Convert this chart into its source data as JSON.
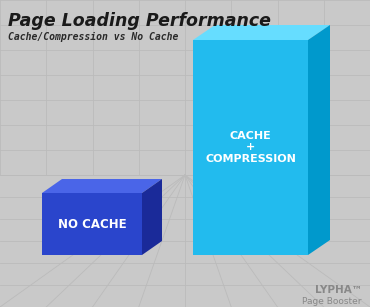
{
  "title": "Page Loading Performance",
  "subtitle": "Cache/Compression vs No Cache",
  "bg_color": "#c9c9c9",
  "grid_color": "#bbbbbb",
  "grid_linewidth": 0.6,
  "title_color": "#1a1a1a",
  "subtitle_color": "#2a2a2a",
  "watermark_line1": "LYPHA™",
  "watermark_line2": "Page Booster",
  "watermark_color": "#888888",
  "bar1_label": "NO CACHE",
  "bar2_label": "CACHE\n+\nCOMPRESSION",
  "bar1_front": "#2a45cc",
  "bar1_top": "#4a65e8",
  "bar1_side": "#1a2a99",
  "bar2_front": "#22bbee",
  "bar2_top": "#66ddff",
  "bar2_side": "#0099cc",
  "label_color": "#ffffff",
  "label_fontsize_1": 8.5,
  "label_fontsize_2": 8.0
}
